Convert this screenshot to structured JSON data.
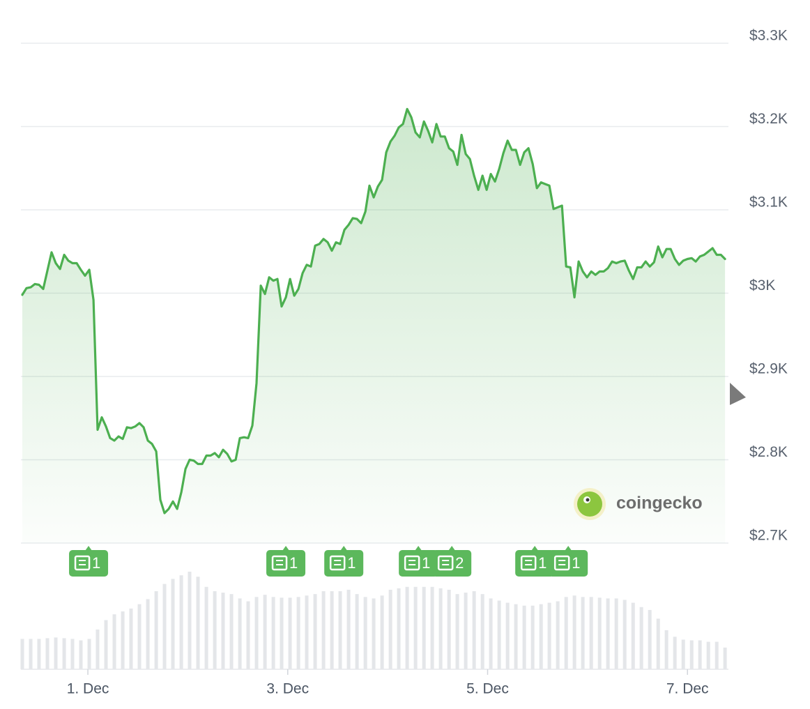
{
  "chart_data": {
    "type": "line",
    "color": "#4caf50",
    "x": [
      0.344,
      0.386,
      0.428,
      0.47,
      0.511,
      0.553,
      0.595,
      0.637,
      0.679,
      0.721,
      0.763,
      0.804,
      0.846,
      0.888,
      0.93,
      0.972,
      1.014,
      1.056,
      1.097,
      1.139,
      1.181,
      1.223,
      1.265,
      1.307,
      1.349,
      1.391,
      1.432,
      1.474,
      1.516,
      1.558,
      1.6,
      1.642,
      1.684,
      1.725,
      1.767,
      1.809,
      1.851,
      1.893,
      1.935,
      1.977,
      2.018,
      2.06,
      2.102,
      2.144,
      2.186,
      2.228,
      2.27,
      2.311,
      2.353,
      2.395,
      2.437,
      2.479,
      2.521,
      2.563,
      2.604,
      2.646,
      2.688,
      2.73,
      2.772,
      2.814,
      2.856,
      2.897,
      2.939,
      2.981,
      3.023,
      3.065,
      3.107,
      3.149,
      3.19,
      3.232,
      3.274,
      3.316,
      3.358,
      3.4,
      3.442,
      3.483,
      3.525,
      3.567,
      3.609,
      3.651,
      3.693,
      3.735,
      3.777,
      3.818,
      3.86,
      3.902,
      3.944,
      3.986,
      4.028,
      4.07,
      4.111,
      4.153,
      4.195,
      4.237,
      4.279,
      4.321,
      4.363,
      4.404,
      4.446,
      4.488,
      4.53,
      4.572,
      4.614,
      4.656,
      4.697,
      4.739,
      4.781,
      4.823,
      4.865,
      4.907,
      4.949,
      4.99,
      5.032,
      5.074,
      5.116,
      5.158,
      5.2,
      5.242,
      5.283,
      5.325,
      5.367,
      5.409,
      5.451,
      5.493,
      5.535,
      5.576,
      5.618,
      5.66,
      5.702,
      5.744,
      5.786,
      5.828,
      5.869,
      5.911,
      5.953,
      5.995,
      6.037,
      6.079,
      6.121,
      6.162,
      6.204,
      6.246,
      6.288,
      6.33,
      6.372,
      6.414,
      6.456,
      6.497,
      6.539,
      6.581,
      6.623,
      6.665,
      6.707,
      6.749,
      6.79,
      6.832,
      6.874,
      6.916,
      6.958,
      7.0,
      7.042,
      7.083,
      7.125,
      7.167,
      7.209,
      7.251,
      7.293,
      7.335,
      7.376
    ],
    "values": [
      2998,
      3006,
      3007,
      3011,
      3010,
      3005,
      3027,
      3049,
      3036,
      3029,
      3046,
      3039,
      3036,
      3036,
      3028,
      3021,
      3028,
      2992,
      2836,
      2851,
      2840,
      2826,
      2823,
      2828,
      2825,
      2839,
      2838,
      2840,
      2844,
      2839,
      2823,
      2819,
      2810,
      2752,
      2736,
      2741,
      2750,
      2741,
      2761,
      2789,
      2800,
      2799,
      2795,
      2795,
      2805,
      2805,
      2808,
      2803,
      2812,
      2807,
      2798,
      2800,
      2826,
      2827,
      2826,
      2841,
      2892,
      3009,
      2999,
      3019,
      3015,
      3017,
      2984,
      2995,
      3017,
      2997,
      3005,
      3024,
      3034,
      3032,
      3057,
      3059,
      3065,
      3061,
      3051,
      3061,
      3059,
      3076,
      3082,
      3090,
      3089,
      3084,
      3098,
      3129,
      3115,
      3128,
      3136,
      3169,
      3182,
      3189,
      3199,
      3203,
      3221,
      3211,
      3193,
      3187,
      3206,
      3195,
      3181,
      3203,
      3188,
      3188,
      3174,
      3170,
      3154,
      3190,
      3167,
      3161,
      3141,
      3124,
      3141,
      3124,
      3143,
      3134,
      3149,
      3168,
      3183,
      3172,
      3172,
      3154,
      3169,
      3174,
      3155,
      3126,
      3133,
      3131,
      3129,
      3101,
      3103,
      3105,
      3032,
      3031,
      2995,
      3038,
      3026,
      3019,
      3026,
      3022,
      3026,
      3026,
      3030,
      3038,
      3036,
      3038,
      3039,
      3027,
      3017,
      3031,
      3031,
      3038,
      3032,
      3037,
      3056,
      3043,
      3053,
      3053,
      3041,
      3034,
      3039,
      3041,
      3042,
      3038,
      3044,
      3046,
      3050,
      3054,
      3046,
      3046,
      3041
    ],
    "xlim": [
      0.33,
      7.41
    ],
    "xticks": [
      {
        "value": 1,
        "label": "1. Dec"
      },
      {
        "value": 3,
        "label": "3. Dec"
      },
      {
        "value": 5,
        "label": "5. Dec"
      },
      {
        "value": 7,
        "label": "7. Dec"
      }
    ],
    "ylim": [
      2700,
      3300
    ],
    "yticks": [
      {
        "value": 2700,
        "label": "$2.7K"
      },
      {
        "value": 2800,
        "label": "$2.8K"
      },
      {
        "value": 2900,
        "label": "$2.9K"
      },
      {
        "value": 3000,
        "label": "$3K"
      },
      {
        "value": 3100,
        "label": "$3.1K"
      },
      {
        "value": 3200,
        "label": "$3.2K"
      },
      {
        "value": 3300,
        "label": "$3.3K"
      }
    ],
    "grid": true,
    "volume": {
      "color": "#e4e6e9",
      "x": [
        0.344,
        0.428,
        0.511,
        0.595,
        0.679,
        0.763,
        0.846,
        0.93,
        1.014,
        1.097,
        1.181,
        1.265,
        1.349,
        1.432,
        1.516,
        1.6,
        1.684,
        1.767,
        1.851,
        1.935,
        2.018,
        2.102,
        2.186,
        2.27,
        2.353,
        2.437,
        2.521,
        2.604,
        2.688,
        2.772,
        2.856,
        2.939,
        3.023,
        3.107,
        3.19,
        3.274,
        3.358,
        3.442,
        3.525,
        3.609,
        3.693,
        3.777,
        3.86,
        3.944,
        4.028,
        4.111,
        4.195,
        4.279,
        4.363,
        4.446,
        4.53,
        4.614,
        4.697,
        4.781,
        4.865,
        4.949,
        5.032,
        5.116,
        5.2,
        5.283,
        5.367,
        5.451,
        5.535,
        5.618,
        5.702,
        5.786,
        5.869,
        5.953,
        6.037,
        6.121,
        6.204,
        6.288,
        6.372,
        6.456,
        6.539,
        6.623,
        6.707,
        6.79,
        6.874,
        6.958,
        7.042,
        7.125,
        7.209,
        7.293,
        7.376
      ],
      "values": [
        42,
        42,
        42,
        43,
        44,
        43,
        42,
        40,
        42,
        55,
        68,
        76,
        80,
        84,
        90,
        97,
        108,
        118,
        125,
        130,
        135,
        128,
        114,
        108,
        106,
        104,
        98,
        94,
        100,
        103,
        100,
        99,
        99,
        100,
        102,
        104,
        108,
        108,
        108,
        110,
        104,
        100,
        98,
        102,
        110,
        112,
        114,
        114,
        114,
        114,
        112,
        110,
        104,
        106,
        108,
        104,
        98,
        95,
        92,
        90,
        88,
        88,
        90,
        92,
        94,
        100,
        102,
        100,
        100,
        99,
        98,
        98,
        96,
        92,
        86,
        82,
        70,
        54,
        45,
        41,
        40,
        40,
        38,
        38,
        30
      ]
    },
    "news": [
      {
        "x": 1.007,
        "label": "1"
      },
      {
        "x": 2.981,
        "label": "1"
      },
      {
        "x": 3.561,
        "label": "1"
      },
      {
        "x": 4.307,
        "label": "1"
      },
      {
        "x": 4.642,
        "label": "2"
      },
      {
        "x": 5.472,
        "label": "1"
      },
      {
        "x": 5.807,
        "label": "1"
      }
    ],
    "watermark": "coingecko"
  }
}
